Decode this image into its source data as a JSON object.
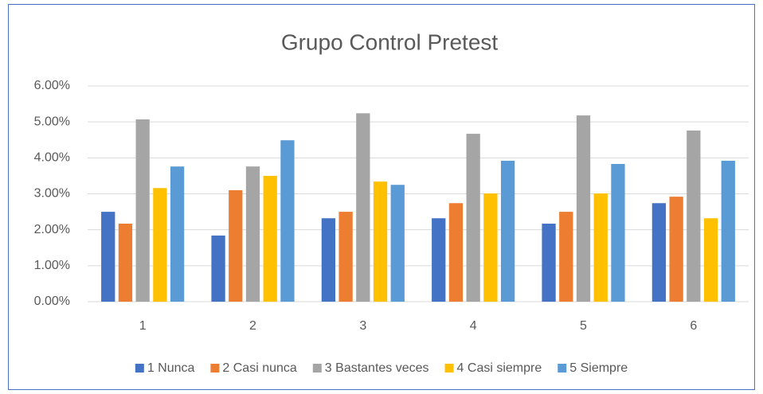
{
  "chart_data": {
    "type": "bar",
    "title": "Grupo Control Pretest",
    "categories": [
      "1",
      "2",
      "3",
      "4",
      "5",
      "6"
    ],
    "series": [
      {
        "name": "1 Nunca",
        "color": "#4472c4",
        "values": [
          2.5,
          1.84,
          2.32,
          2.32,
          2.17,
          2.74
        ]
      },
      {
        "name": "2 Casi nunca",
        "color": "#ed7d31",
        "values": [
          2.17,
          3.1,
          2.5,
          2.74,
          2.5,
          2.92
        ]
      },
      {
        "name": "3 Bastantes veces",
        "color": "#a5a5a5",
        "values": [
          5.07,
          3.76,
          5.24,
          4.67,
          5.18,
          4.76
        ]
      },
      {
        "name": "4 Casi siempre",
        "color": "#ffc000",
        "values": [
          3.16,
          3.5,
          3.34,
          3.01,
          3.01,
          2.32
        ]
      },
      {
        "name": "5 Siempre",
        "color": "#5b9bd5",
        "values": [
          3.76,
          4.49,
          3.25,
          3.92,
          3.83,
          3.92
        ]
      }
    ],
    "ylim": [
      0,
      6
    ],
    "yticks": [
      {
        "value": 0,
        "label": "0.00%"
      },
      {
        "value": 1,
        "label": "1.00%"
      },
      {
        "value": 2,
        "label": "2.00%"
      },
      {
        "value": 3,
        "label": "3.00%"
      },
      {
        "value": 4,
        "label": "4.00%"
      },
      {
        "value": 5,
        "label": "5.00%"
      },
      {
        "value": 6,
        "label": "6.00%"
      }
    ],
    "grid": true,
    "legend": "bottom"
  }
}
